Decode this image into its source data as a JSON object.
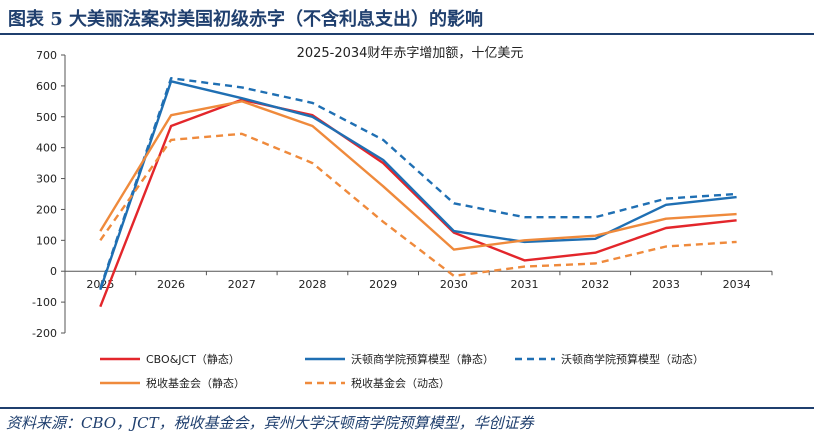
{
  "header": {
    "figure_title": "图表 5   大美丽法案对美国初级赤字（不含利息支出）的影响"
  },
  "footer": {
    "source": "资料来源：CBO，JCT，税收基金会，宾州大学沃顿商学院预算模型，华创证券"
  },
  "colors": {
    "red": "#e3262b",
    "blue": "#1f6fb3",
    "orange": "#ef8a3c",
    "rule": "#1f3f6e"
  },
  "chart_data": {
    "type": "line",
    "title": "2025-2034财年赤字增加额，十亿美元",
    "xlabel": "",
    "ylabel": "",
    "x": [
      "2025",
      "2026",
      "2027",
      "2028",
      "2029",
      "2030",
      "2031",
      "2032",
      "2033",
      "2034"
    ],
    "ylim": [
      -200,
      700
    ],
    "yticks": [
      -200,
      -100,
      0,
      100,
      200,
      300,
      400,
      500,
      600,
      700
    ],
    "legend_position": "bottom",
    "series": [
      {
        "name": "CBO&JCT（静态）",
        "color": "red",
        "dash": "solid",
        "values": [
          -115,
          470,
          555,
          505,
          350,
          125,
          35,
          60,
          140,
          165
        ]
      },
      {
        "name": "沃顿商学院预算模型（静态）",
        "color": "blue",
        "dash": "solid",
        "values": [
          -60,
          615,
          560,
          500,
          360,
          130,
          95,
          105,
          215,
          240
        ]
      },
      {
        "name": "沃顿商学院预算模型（动态）",
        "color": "blue",
        "dash": "dashed",
        "values": [
          -55,
          625,
          595,
          545,
          425,
          220,
          175,
          175,
          235,
          250
        ]
      },
      {
        "name": "税收基金会（静态）",
        "color": "orange",
        "dash": "solid",
        "values": [
          130,
          505,
          550,
          470,
          275,
          70,
          100,
          115,
          170,
          185
        ]
      },
      {
        "name": "税收基金会（动态）",
        "color": "orange",
        "dash": "dashed",
        "values": [
          100,
          425,
          445,
          350,
          160,
          -15,
          15,
          25,
          80,
          95
        ]
      }
    ]
  }
}
